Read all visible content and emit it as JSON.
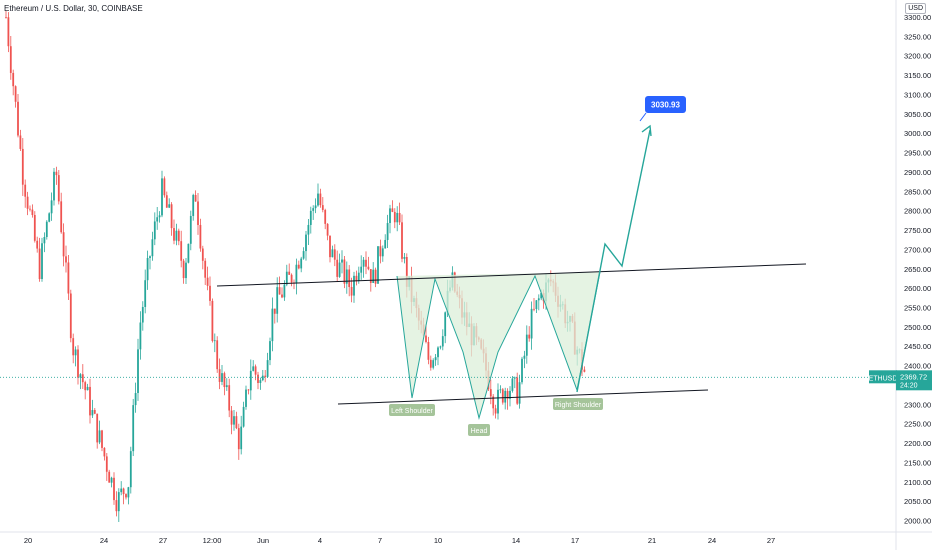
{
  "header": {
    "symbol_title": "Ethereum / U.S. Dollar, 30, COINBASE",
    "currency": "USD"
  },
  "chart_data": {
    "type": "candlestick",
    "title": "Ethereum / U.S. Dollar, 30, COINBASE",
    "ylim": [
      1980,
      3300
    ],
    "y_ticks": [
      2000,
      2050,
      2100,
      2150,
      2200,
      2250,
      2300,
      2350,
      2400,
      2450,
      2500,
      2550,
      2600,
      2650,
      2700,
      2750,
      2800,
      2850,
      2900,
      2950,
      3000,
      3050,
      3100,
      3150,
      3200,
      3250,
      3300
    ],
    "x_ticks": [
      "20",
      "24",
      "27",
      "12:00",
      "Jun",
      "4",
      "7",
      "10",
      "14",
      "17",
      "21",
      "24",
      "27"
    ],
    "price_path": [
      [
        0,
        3300
      ],
      [
        1.5,
        2900
      ],
      [
        3,
        2650
      ],
      [
        4.5,
        2900
      ],
      [
        6,
        2450
      ],
      [
        7.5,
        2300
      ],
      [
        9,
        2150
      ],
      [
        10,
        2050
      ],
      [
        11,
        2100
      ],
      [
        12,
        2500
      ],
      [
        13,
        2700
      ],
      [
        14,
        2850
      ],
      [
        15,
        2750
      ],
      [
        16,
        2650
      ],
      [
        17,
        2850
      ],
      [
        18,
        2600
      ],
      [
        19,
        2400
      ],
      [
        20,
        2300
      ],
      [
        21,
        2200
      ],
      [
        22,
        2400
      ],
      [
        23,
        2350
      ],
      [
        24,
        2550
      ],
      [
        25,
        2600
      ],
      [
        26,
        2650
      ],
      [
        27,
        2750
      ],
      [
        28,
        2850
      ],
      [
        29,
        2700
      ],
      [
        30,
        2650
      ],
      [
        31,
        2600
      ],
      [
        32,
        2700
      ],
      [
        33,
        2620
      ],
      [
        34,
        2750
      ],
      [
        35,
        2800
      ],
      [
        36,
        2620
      ],
      [
        37,
        2520
      ],
      [
        38,
        2410
      ],
      [
        39,
        2470
      ],
      [
        40,
        2620
      ],
      [
        41,
        2530
      ],
      [
        42,
        2470
      ],
      [
        43,
        2400
      ],
      [
        44,
        2300
      ],
      [
        45,
        2350
      ],
      [
        46,
        2330
      ],
      [
        47,
        2500
      ],
      [
        48,
        2580
      ],
      [
        49,
        2620
      ],
      [
        50,
        2550
      ],
      [
        51,
        2470
      ],
      [
        52,
        2380
      ]
    ],
    "last_price": 2369.72,
    "last_price_label": "ETHUSD",
    "countdown": "24:20",
    "neckline": {
      "from": [
        2612,
        "May 23"
      ],
      "to": [
        2667,
        "Jun 25"
      ]
    },
    "support_line": {
      "from": [
        2305,
        "Jun 6"
      ],
      "to": [
        2335,
        "Jun 23"
      ]
    },
    "pattern": "inverse head and shoulders",
    "annotations": [
      {
        "label": "Left Shoulder"
      },
      {
        "label": "Head"
      },
      {
        "label": "Right Shoulder"
      }
    ],
    "target": "3030.93",
    "colors": {
      "up": "#26a69a",
      "down": "#ef5350",
      "fill": "#dcefd9",
      "target": "#2962ff",
      "label_bg": "#a5c49a"
    }
  }
}
